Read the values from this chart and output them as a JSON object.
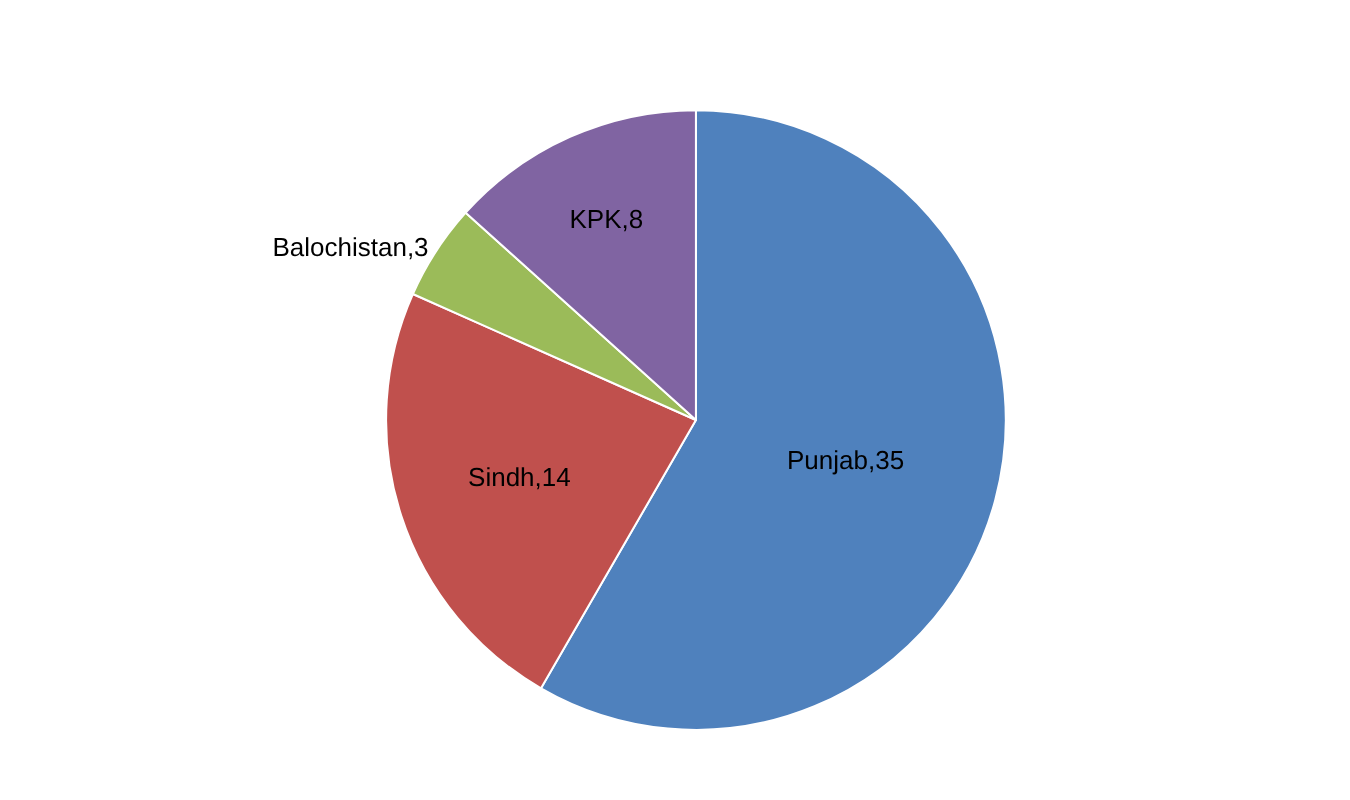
{
  "chart_data": {
    "type": "pie",
    "categories": [
      "Punjab",
      "Sindh",
      "Balochistan",
      "KPK"
    ],
    "values": [
      35,
      14,
      3,
      8
    ],
    "colors": [
      "#4f81bd",
      "#c0504d",
      "#9bbb59",
      "#8064a2"
    ],
    "value_labels": [
      ",35",
      ",14",
      ",3",
      ",8"
    ],
    "legend": false
  }
}
